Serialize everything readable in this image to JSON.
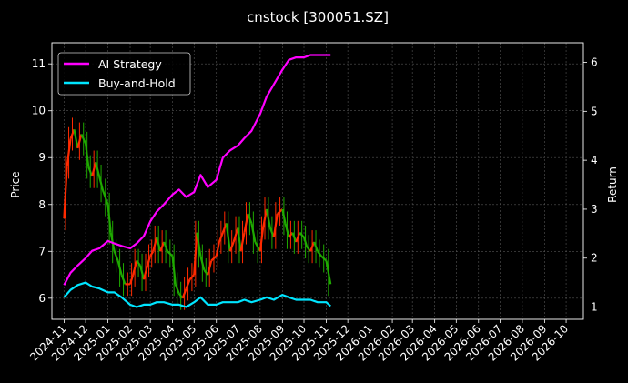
{
  "chart_data": {
    "type": "line",
    "title": "cnstock [300051.SZ]",
    "ylabel_left": "Price",
    "ylabel_right": "Return",
    "xlabel": "",
    "ylim_left": [
      5.55,
      11.45
    ],
    "ylim_right": [
      0.75,
      6.4
    ],
    "left_ticks": [
      6,
      7,
      8,
      9,
      10,
      11
    ],
    "right_ticks": [
      1,
      2,
      3,
      4,
      5,
      6
    ],
    "x_ticks": [
      "2024-11",
      "2024-12",
      "2025-01",
      "2025-02",
      "2025-03",
      "2025-04",
      "2025-05",
      "2025-06",
      "2025-07",
      "2025-08",
      "2025-09",
      "2025-10",
      "2025-11",
      "2025-12",
      "2026-01",
      "2026-02",
      "2026-03",
      "2026-04",
      "2026-05",
      "2026-06",
      "2026-07",
      "2026-08",
      "2026-09",
      "2026-10"
    ],
    "grid": true,
    "legend_position": "top-left",
    "colors": {
      "ai": "#ff00ff",
      "bh": "#00e5ff",
      "up": "#ff2a00",
      "down": "#1faa00",
      "grid": "#555555"
    },
    "series": [
      {
        "name": "AI Strategy",
        "axis": "right",
        "x": [
          "2024-11-01",
          "2024-11-10",
          "2024-11-20",
          "2024-12-01",
          "2024-12-10",
          "2024-12-20",
          "2025-01-01",
          "2025-01-10",
          "2025-01-20",
          "2025-02-01",
          "2025-02-10",
          "2025-02-20",
          "2025-03-01",
          "2025-03-10",
          "2025-03-20",
          "2025-04-01",
          "2025-04-10",
          "2025-04-20",
          "2025-05-01",
          "2025-05-10",
          "2025-05-20",
          "2025-06-01",
          "2025-06-10",
          "2025-06-20",
          "2025-07-01",
          "2025-07-10",
          "2025-07-20",
          "2025-08-01",
          "2025-08-10",
          "2025-08-20",
          "2025-09-01",
          "2025-09-10",
          "2025-09-20",
          "2025-10-01",
          "2025-10-10",
          "2025-10-20",
          "2025-11-01",
          "2025-11-07"
        ],
        "values": [
          1.45,
          1.7,
          1.85,
          2.0,
          2.15,
          2.2,
          2.35,
          2.3,
          2.25,
          2.2,
          2.3,
          2.45,
          2.75,
          2.95,
          3.1,
          3.3,
          3.4,
          3.25,
          3.35,
          3.7,
          3.45,
          3.6,
          4.05,
          4.2,
          4.3,
          4.45,
          4.6,
          4.95,
          5.3,
          5.55,
          5.85,
          6.05,
          6.1,
          6.1,
          6.15,
          6.15,
          6.15,
          6.15
        ]
      },
      {
        "name": "Buy-and-Hold",
        "axis": "right",
        "x": [
          "2024-11-01",
          "2024-11-10",
          "2024-11-20",
          "2024-12-01",
          "2024-12-10",
          "2024-12-20",
          "2025-01-01",
          "2025-01-10",
          "2025-01-20",
          "2025-02-01",
          "2025-02-10",
          "2025-02-20",
          "2025-03-01",
          "2025-03-10",
          "2025-03-20",
          "2025-04-01",
          "2025-04-10",
          "2025-04-20",
          "2025-05-01",
          "2025-05-10",
          "2025-05-20",
          "2025-06-01",
          "2025-06-10",
          "2025-06-20",
          "2025-07-01",
          "2025-07-10",
          "2025-07-20",
          "2025-08-01",
          "2025-08-10",
          "2025-08-20",
          "2025-09-01",
          "2025-09-10",
          "2025-09-20",
          "2025-10-01",
          "2025-10-10",
          "2025-10-20",
          "2025-11-01",
          "2025-11-07"
        ],
        "values": [
          1.2,
          1.35,
          1.45,
          1.5,
          1.42,
          1.38,
          1.3,
          1.3,
          1.2,
          1.05,
          1.0,
          1.05,
          1.05,
          1.1,
          1.1,
          1.05,
          1.05,
          1.0,
          1.1,
          1.2,
          1.05,
          1.05,
          1.1,
          1.1,
          1.1,
          1.15,
          1.1,
          1.15,
          1.2,
          1.15,
          1.25,
          1.2,
          1.15,
          1.15,
          1.15,
          1.1,
          1.1,
          1.02
        ]
      },
      {
        "name": "Price",
        "axis": "left",
        "x": [
          "2024-11-01",
          "2024-11-05",
          "2024-11-10",
          "2024-11-15",
          "2024-11-20",
          "2024-11-25",
          "2024-12-01",
          "2024-12-05",
          "2024-12-10",
          "2024-12-15",
          "2024-12-20",
          "2024-12-25",
          "2025-01-01",
          "2025-01-05",
          "2025-01-10",
          "2025-01-15",
          "2025-01-20",
          "2025-01-25",
          "2025-02-01",
          "2025-02-05",
          "2025-02-10",
          "2025-02-15",
          "2025-02-20",
          "2025-02-25",
          "2025-03-01",
          "2025-03-05",
          "2025-03-10",
          "2025-03-15",
          "2025-03-20",
          "2025-03-25",
          "2025-04-01",
          "2025-04-05",
          "2025-04-10",
          "2025-04-15",
          "2025-04-20",
          "2025-04-25",
          "2025-05-01",
          "2025-05-05",
          "2025-05-10",
          "2025-05-15",
          "2025-05-20",
          "2025-05-25",
          "2025-06-01",
          "2025-06-05",
          "2025-06-10",
          "2025-06-15",
          "2025-06-20",
          "2025-06-25",
          "2025-07-01",
          "2025-07-05",
          "2025-07-10",
          "2025-07-15",
          "2025-07-20",
          "2025-07-25",
          "2025-08-01",
          "2025-08-05",
          "2025-08-10",
          "2025-08-15",
          "2025-08-20",
          "2025-08-25",
          "2025-09-01",
          "2025-09-05",
          "2025-09-10",
          "2025-09-15",
          "2025-09-20",
          "2025-09-25",
          "2025-10-01",
          "2025-10-05",
          "2025-10-10",
          "2025-10-15",
          "2025-10-20",
          "2025-10-25",
          "2025-11-01",
          "2025-11-07"
        ],
        "values": [
          7.7,
          8.8,
          9.4,
          9.6,
          9.2,
          9.5,
          9.3,
          8.8,
          8.6,
          8.9,
          8.6,
          8.3,
          8.0,
          7.4,
          7.0,
          6.8,
          6.5,
          6.3,
          6.3,
          6.5,
          6.8,
          6.7,
          6.4,
          6.7,
          6.9,
          7.0,
          7.3,
          7.0,
          7.2,
          7.0,
          6.9,
          6.3,
          6.1,
          6.0,
          6.2,
          6.4,
          6.5,
          7.4,
          6.9,
          6.6,
          6.5,
          6.8,
          6.9,
          7.2,
          7.4,
          7.6,
          7.0,
          7.2,
          7.5,
          7.0,
          7.4,
          7.8,
          7.6,
          7.2,
          7.0,
          7.5,
          7.9,
          7.5,
          7.3,
          7.8,
          7.9,
          7.6,
          7.3,
          7.4,
          7.2,
          7.4,
          7.3,
          7.1,
          7.0,
          7.2,
          7.0,
          6.9,
          6.8,
          6.3
        ]
      }
    ]
  }
}
